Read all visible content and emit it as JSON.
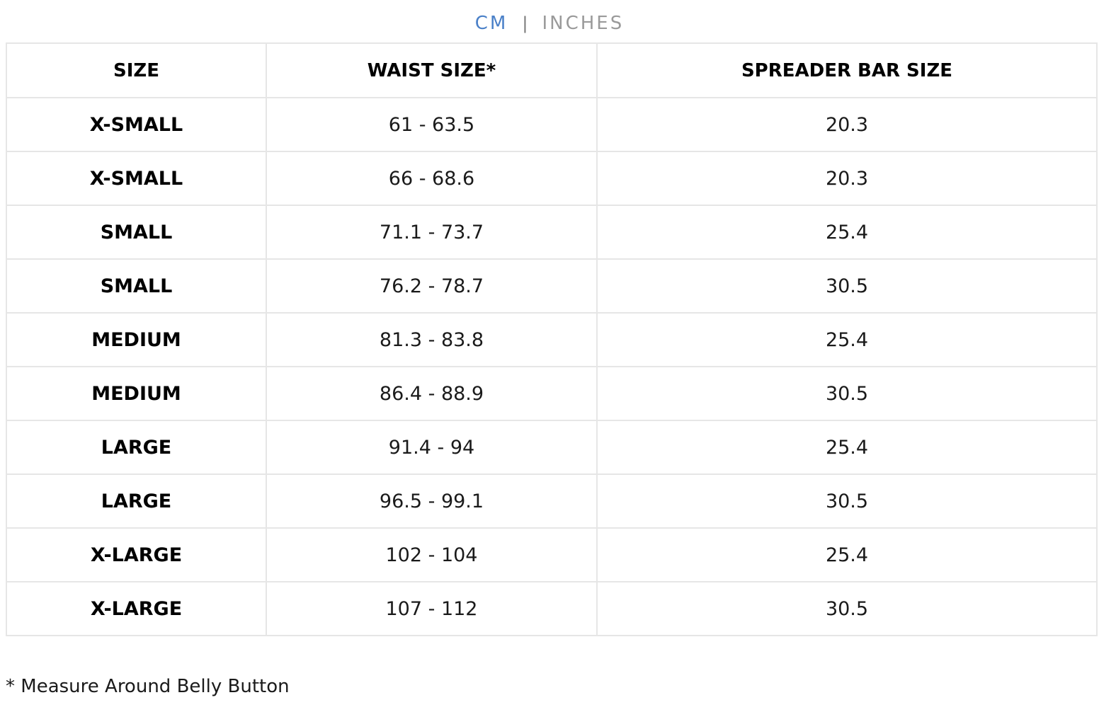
{
  "unit_toggle": {
    "options": [
      {
        "label": "CM",
        "active": true
      },
      {
        "label": "INCHES",
        "active": false
      }
    ],
    "separator": "|",
    "active_color": "#4a80c8",
    "inactive_color": "#9a9a9a"
  },
  "table": {
    "headers": [
      "SIZE",
      "WAIST SIZE*",
      "SPREADER BAR SIZE"
    ],
    "rows": [
      {
        "size": "X-SMALL",
        "waist": "61 - 63.5",
        "spreader": "20.3"
      },
      {
        "size": "X-SMALL",
        "waist": "66 - 68.6",
        "spreader": "20.3"
      },
      {
        "size": "SMALL",
        "waist": "71.1 - 73.7",
        "spreader": "25.4"
      },
      {
        "size": "SMALL",
        "waist": "76.2 - 78.7",
        "spreader": "30.5"
      },
      {
        "size": "MEDIUM",
        "waist": "81.3 - 83.8",
        "spreader": "25.4"
      },
      {
        "size": "MEDIUM",
        "waist": "86.4 - 88.9",
        "spreader": "30.5"
      },
      {
        "size": "LARGE",
        "waist": "91.4 - 94",
        "spreader": "25.4"
      },
      {
        "size": "LARGE",
        "waist": "96.5 - 99.1",
        "spreader": "30.5"
      },
      {
        "size": "X-LARGE",
        "waist": "102 - 104",
        "spreader": "25.4"
      },
      {
        "size": "X-LARGE",
        "waist": "107 - 112",
        "spreader": "30.5"
      }
    ]
  },
  "footnote": "* Measure Around Belly Button"
}
